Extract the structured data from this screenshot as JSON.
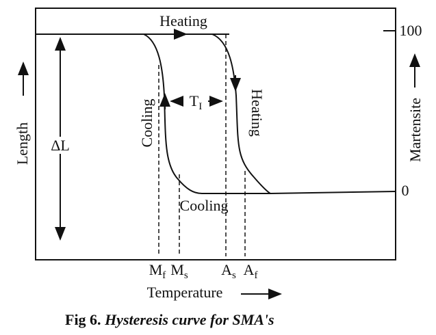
{
  "diagram": {
    "top_label": "Heating",
    "right_axis": {
      "top": "100",
      "bottom": "0",
      "label": "Martensite"
    },
    "left_axis": {
      "label": "Length",
      "delta": "ΔL"
    },
    "cooling_label": "Cooling",
    "heating_label": "Heating",
    "bottom_cooling_label": "Cooling",
    "hysteresis": {
      "base": "T",
      "sub": "I"
    },
    "temperatures": [
      {
        "base": "M",
        "sub": "f"
      },
      {
        "base": "M",
        "sub": "s"
      },
      {
        "base": "A",
        "sub": "s"
      },
      {
        "base": "A",
        "sub": "f"
      }
    ],
    "x_label": "Temperature"
  },
  "caption": {
    "number": "Fig 6.",
    "text": "Hysteresis curve for SMA's"
  }
}
